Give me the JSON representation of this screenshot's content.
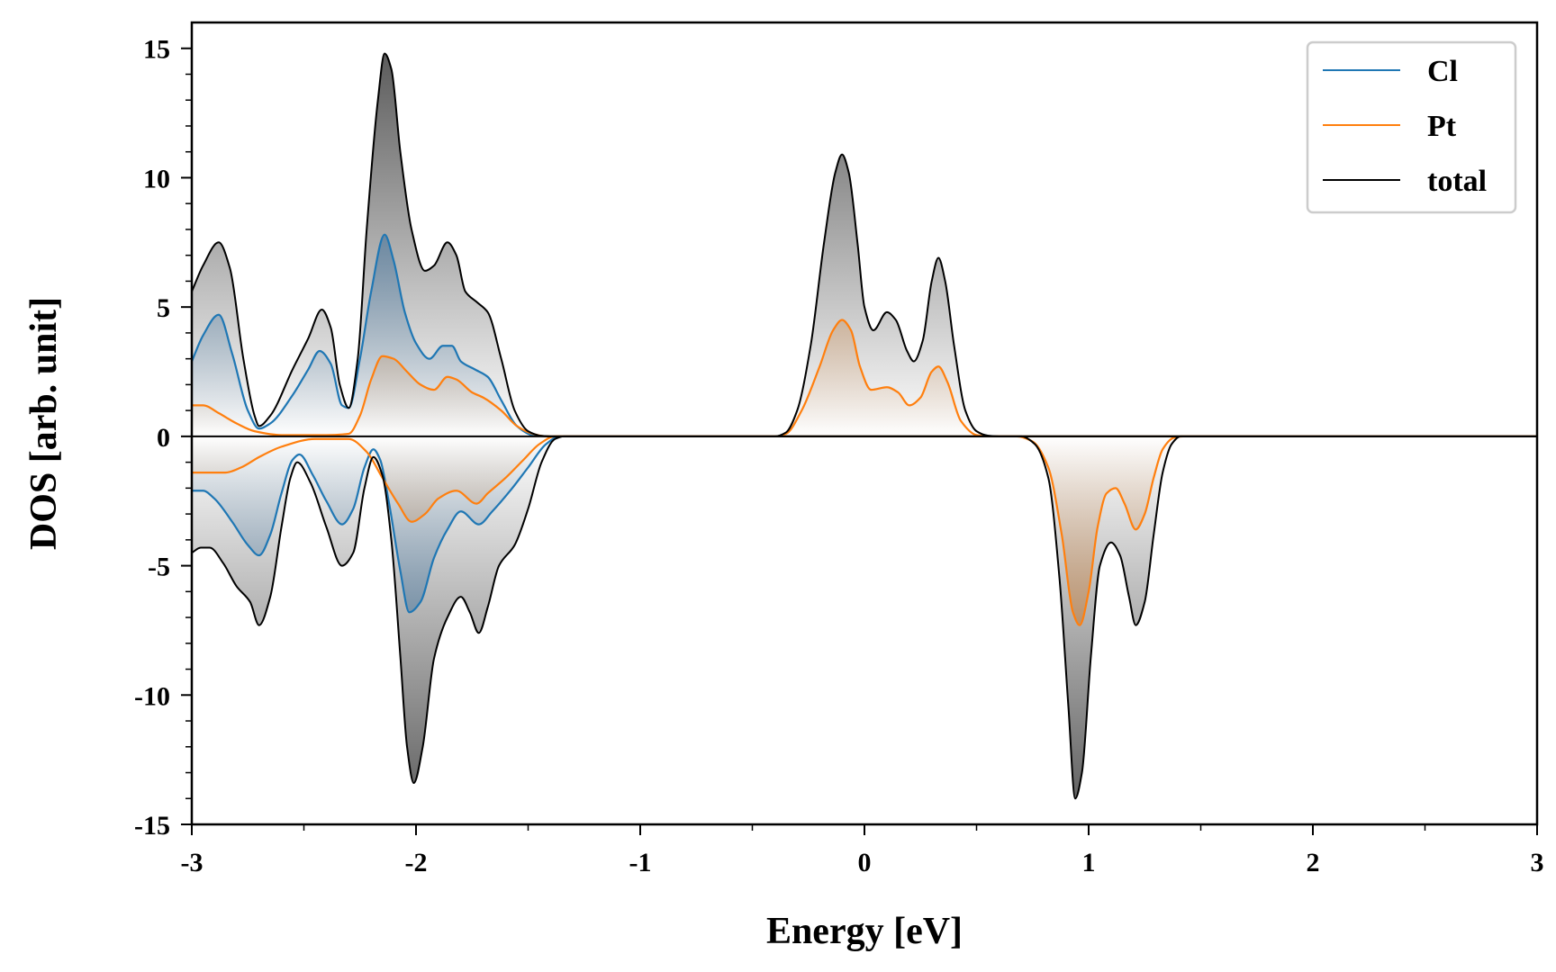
{
  "chart_data": {
    "type": "area",
    "title": "",
    "xlabel": "Energy [eV]",
    "ylabel": "DOS [arb. unit]",
    "xlim": [
      -3,
      3
    ],
    "ylim": [
      -15,
      16
    ],
    "x_ticks": [
      -3,
      -2,
      -1,
      0,
      1,
      2,
      3
    ],
    "x_tick_labels": [
      "-3",
      "-2",
      "-1",
      "0",
      "1",
      "2",
      "3"
    ],
    "y_ticks": [
      -15,
      -10,
      -5,
      0,
      5,
      10,
      15
    ],
    "y_tick_labels": [
      "-15",
      "-10",
      "-5",
      "0",
      "5",
      "10",
      "15"
    ],
    "grid": false,
    "legend_position": "top-right",
    "fill": "vertical gradient, darker with larger |DOS|",
    "series": [
      {
        "name": "Cl",
        "color": "#1f77b4",
        "fill_color": "#1f5f96",
        "up": [
          [
            -3.0,
            2.9
          ],
          [
            -2.95,
            3.9
          ],
          [
            -2.88,
            4.7
          ],
          [
            -2.82,
            3.2
          ],
          [
            -2.75,
            1.0
          ],
          [
            -2.7,
            0.3
          ],
          [
            -2.65,
            0.5
          ],
          [
            -2.55,
            1.6
          ],
          [
            -2.48,
            2.6
          ],
          [
            -2.43,
            3.3
          ],
          [
            -2.38,
            2.8
          ],
          [
            -2.33,
            1.2
          ],
          [
            -2.3,
            1.1
          ],
          [
            -2.25,
            3.0
          ],
          [
            -2.2,
            5.6
          ],
          [
            -2.14,
            7.8
          ],
          [
            -2.1,
            6.8
          ],
          [
            -2.05,
            4.8
          ],
          [
            -2.0,
            3.6
          ],
          [
            -1.94,
            3.0
          ],
          [
            -1.88,
            3.5
          ],
          [
            -1.84,
            3.5
          ],
          [
            -1.8,
            2.9
          ],
          [
            -1.74,
            2.6
          ],
          [
            -1.68,
            2.3
          ],
          [
            -1.62,
            1.4
          ],
          [
            -1.55,
            0.4
          ],
          [
            -1.48,
            0.05
          ],
          [
            -1.4,
            0.0
          ],
          [
            -1.35,
            0.0
          ],
          [
            3.0,
            0.0
          ]
        ],
        "down": [
          [
            -3.0,
            -2.1
          ],
          [
            -2.95,
            -2.1
          ],
          [
            -2.9,
            -2.4
          ],
          [
            -2.82,
            -3.3
          ],
          [
            -2.75,
            -4.2
          ],
          [
            -2.7,
            -4.6
          ],
          [
            -2.65,
            -3.8
          ],
          [
            -2.6,
            -2.2
          ],
          [
            -2.55,
            -0.9
          ],
          [
            -2.52,
            -0.7
          ],
          [
            -2.46,
            -1.5
          ],
          [
            -2.4,
            -2.5
          ],
          [
            -2.33,
            -3.4
          ],
          [
            -2.28,
            -2.8
          ],
          [
            -2.23,
            -1.2
          ],
          [
            -2.19,
            -0.5
          ],
          [
            -2.16,
            -0.9
          ],
          [
            -2.12,
            -2.6
          ],
          [
            -2.07,
            -5.2
          ],
          [
            -2.03,
            -6.8
          ],
          [
            -1.98,
            -6.4
          ],
          [
            -1.92,
            -4.7
          ],
          [
            -1.86,
            -3.6
          ],
          [
            -1.8,
            -2.9
          ],
          [
            -1.72,
            -3.4
          ],
          [
            -1.66,
            -2.9
          ],
          [
            -1.58,
            -2.1
          ],
          [
            -1.5,
            -1.2
          ],
          [
            -1.42,
            -0.3
          ],
          [
            -1.36,
            0.0
          ],
          [
            3.0,
            0.0
          ]
        ]
      },
      {
        "name": "Pt",
        "color": "#ff7f0e",
        "fill_color": "#c96a12",
        "up": [
          [
            -3.0,
            1.2
          ],
          [
            -2.95,
            1.2
          ],
          [
            -2.88,
            0.9
          ],
          [
            -2.8,
            0.5
          ],
          [
            -2.72,
            0.2
          ],
          [
            -2.6,
            0.05
          ],
          [
            -2.4,
            0.05
          ],
          [
            -2.3,
            0.1
          ],
          [
            -2.25,
            0.8
          ],
          [
            -2.2,
            2.2
          ],
          [
            -2.15,
            3.1
          ],
          [
            -2.1,
            3.0
          ],
          [
            -2.04,
            2.5
          ],
          [
            -1.98,
            2.0
          ],
          [
            -1.92,
            1.8
          ],
          [
            -1.86,
            2.3
          ],
          [
            -1.82,
            2.2
          ],
          [
            -1.75,
            1.7
          ],
          [
            -1.7,
            1.5
          ],
          [
            -1.62,
            1.0
          ],
          [
            -1.55,
            0.4
          ],
          [
            -1.48,
            0.1
          ],
          [
            -1.42,
            0.0
          ],
          [
            -0.4,
            0.0
          ],
          [
            -0.35,
            0.1
          ],
          [
            -0.28,
            1.0
          ],
          [
            -0.2,
            2.7
          ],
          [
            -0.14,
            4.1
          ],
          [
            -0.1,
            4.5
          ],
          [
            -0.06,
            4.1
          ],
          [
            -0.02,
            2.7
          ],
          [
            0.03,
            1.8
          ],
          [
            0.1,
            1.9
          ],
          [
            0.15,
            1.7
          ],
          [
            0.2,
            1.2
          ],
          [
            0.25,
            1.5
          ],
          [
            0.3,
            2.5
          ],
          [
            0.33,
            2.7
          ],
          [
            0.37,
            2.1
          ],
          [
            0.43,
            0.6
          ],
          [
            0.5,
            0.05
          ],
          [
            0.56,
            0.0
          ],
          [
            3.0,
            0.0
          ]
        ],
        "down": [
          [
            -3.0,
            -1.4
          ],
          [
            -2.95,
            -1.4
          ],
          [
            -2.85,
            -1.4
          ],
          [
            -2.78,
            -1.2
          ],
          [
            -2.7,
            -0.8
          ],
          [
            -2.6,
            -0.4
          ],
          [
            -2.45,
            -0.1
          ],
          [
            -2.3,
            -0.1
          ],
          [
            -2.22,
            -0.6
          ],
          [
            -2.15,
            -1.6
          ],
          [
            -2.08,
            -2.6
          ],
          [
            -2.02,
            -3.3
          ],
          [
            -1.96,
            -3.0
          ],
          [
            -1.9,
            -2.4
          ],
          [
            -1.82,
            -2.1
          ],
          [
            -1.73,
            -2.6
          ],
          [
            -1.68,
            -2.2
          ],
          [
            -1.6,
            -1.6
          ],
          [
            -1.52,
            -0.9
          ],
          [
            -1.45,
            -0.3
          ],
          [
            -1.38,
            0.0
          ],
          [
            0.68,
            0.0
          ],
          [
            0.75,
            -0.2
          ],
          [
            0.82,
            -1.2
          ],
          [
            0.88,
            -3.8
          ],
          [
            0.93,
            -6.8
          ],
          [
            0.96,
            -7.3
          ],
          [
            1.0,
            -6.0
          ],
          [
            1.04,
            -3.5
          ],
          [
            1.08,
            -2.2
          ],
          [
            1.12,
            -2.0
          ],
          [
            1.16,
            -2.6
          ],
          [
            1.21,
            -3.6
          ],
          [
            1.25,
            -3.0
          ],
          [
            1.29,
            -1.6
          ],
          [
            1.33,
            -0.5
          ],
          [
            1.38,
            -0.05
          ],
          [
            1.42,
            0.0
          ],
          [
            3.0,
            0.0
          ]
        ]
      },
      {
        "name": "total",
        "color": "#000000",
        "fill_color": "#3c3c3c",
        "up": [
          [
            -3.0,
            5.6
          ],
          [
            -2.95,
            6.6
          ],
          [
            -2.88,
            7.5
          ],
          [
            -2.83,
            6.5
          ],
          [
            -2.77,
            3.0
          ],
          [
            -2.72,
            0.8
          ],
          [
            -2.7,
            0.4
          ],
          [
            -2.65,
            0.8
          ],
          [
            -2.55,
            2.6
          ],
          [
            -2.48,
            3.8
          ],
          [
            -2.42,
            4.9
          ],
          [
            -2.38,
            4.2
          ],
          [
            -2.34,
            2.0
          ],
          [
            -2.3,
            1.1
          ],
          [
            -2.26,
            3.0
          ],
          [
            -2.22,
            8.0
          ],
          [
            -2.17,
            13.0
          ],
          [
            -2.14,
            14.8
          ],
          [
            -2.11,
            14.2
          ],
          [
            -2.07,
            11.0
          ],
          [
            -2.02,
            8.0
          ],
          [
            -1.96,
            6.4
          ],
          [
            -1.92,
            6.6
          ],
          [
            -1.86,
            7.5
          ],
          [
            -1.82,
            7.0
          ],
          [
            -1.78,
            5.6
          ],
          [
            -1.73,
            5.2
          ],
          [
            -1.68,
            4.8
          ],
          [
            -1.62,
            3.0
          ],
          [
            -1.56,
            1.0
          ],
          [
            -1.5,
            0.2
          ],
          [
            -1.44,
            0.02
          ],
          [
            -1.4,
            0.0
          ],
          [
            -0.4,
            0.0
          ],
          [
            -0.35,
            0.15
          ],
          [
            -0.3,
            1.0
          ],
          [
            -0.24,
            3.5
          ],
          [
            -0.18,
            7.5
          ],
          [
            -0.13,
            10.2
          ],
          [
            -0.1,
            10.9
          ],
          [
            -0.07,
            10.2
          ],
          [
            -0.03,
            7.4
          ],
          [
            0.0,
            5.0
          ],
          [
            0.04,
            4.1
          ],
          [
            0.1,
            4.8
          ],
          [
            0.14,
            4.5
          ],
          [
            0.19,
            3.3
          ],
          [
            0.22,
            2.9
          ],
          [
            0.26,
            3.7
          ],
          [
            0.3,
            6.0
          ],
          [
            0.33,
            6.9
          ],
          [
            0.36,
            6.0
          ],
          [
            0.4,
            3.5
          ],
          [
            0.45,
            1.0
          ],
          [
            0.5,
            0.2
          ],
          [
            0.55,
            0.03
          ],
          [
            0.6,
            0.0
          ],
          [
            3.0,
            0.0
          ]
        ],
        "down": [
          [
            -3.0,
            -4.5
          ],
          [
            -2.96,
            -4.3
          ],
          [
            -2.92,
            -4.3
          ],
          [
            -2.86,
            -4.9
          ],
          [
            -2.8,
            -5.8
          ],
          [
            -2.74,
            -6.4
          ],
          [
            -2.7,
            -7.3
          ],
          [
            -2.65,
            -6.2
          ],
          [
            -2.6,
            -3.5
          ],
          [
            -2.56,
            -1.6
          ],
          [
            -2.53,
            -1.0
          ],
          [
            -2.47,
            -1.8
          ],
          [
            -2.4,
            -3.5
          ],
          [
            -2.33,
            -5.0
          ],
          [
            -2.28,
            -4.5
          ],
          [
            -2.23,
            -2.0
          ],
          [
            -2.19,
            -0.8
          ],
          [
            -2.15,
            -1.5
          ],
          [
            -2.11,
            -4.0
          ],
          [
            -2.07,
            -8.5
          ],
          [
            -2.04,
            -12.0
          ],
          [
            -2.01,
            -13.4
          ],
          [
            -1.97,
            -12.0
          ],
          [
            -1.92,
            -8.6
          ],
          [
            -1.86,
            -7.0
          ],
          [
            -1.8,
            -6.2
          ],
          [
            -1.76,
            -6.8
          ],
          [
            -1.72,
            -7.6
          ],
          [
            -1.68,
            -6.6
          ],
          [
            -1.63,
            -5.0
          ],
          [
            -1.56,
            -4.2
          ],
          [
            -1.5,
            -2.8
          ],
          [
            -1.44,
            -1.0
          ],
          [
            -1.38,
            -0.1
          ],
          [
            -1.34,
            0.0
          ],
          [
            0.7,
            0.0
          ],
          [
            0.76,
            -0.3
          ],
          [
            0.82,
            -1.6
          ],
          [
            0.87,
            -5.5
          ],
          [
            0.91,
            -10.5
          ],
          [
            0.94,
            -14.0
          ],
          [
            0.97,
            -13.0
          ],
          [
            1.01,
            -8.5
          ],
          [
            1.05,
            -5.0
          ],
          [
            1.1,
            -4.1
          ],
          [
            1.14,
            -4.6
          ],
          [
            1.18,
            -6.2
          ],
          [
            1.21,
            -7.3
          ],
          [
            1.25,
            -6.4
          ],
          [
            1.29,
            -3.8
          ],
          [
            1.33,
            -1.4
          ],
          [
            1.37,
            -0.3
          ],
          [
            1.41,
            0.0
          ],
          [
            3.0,
            0.0
          ]
        ]
      }
    ]
  }
}
